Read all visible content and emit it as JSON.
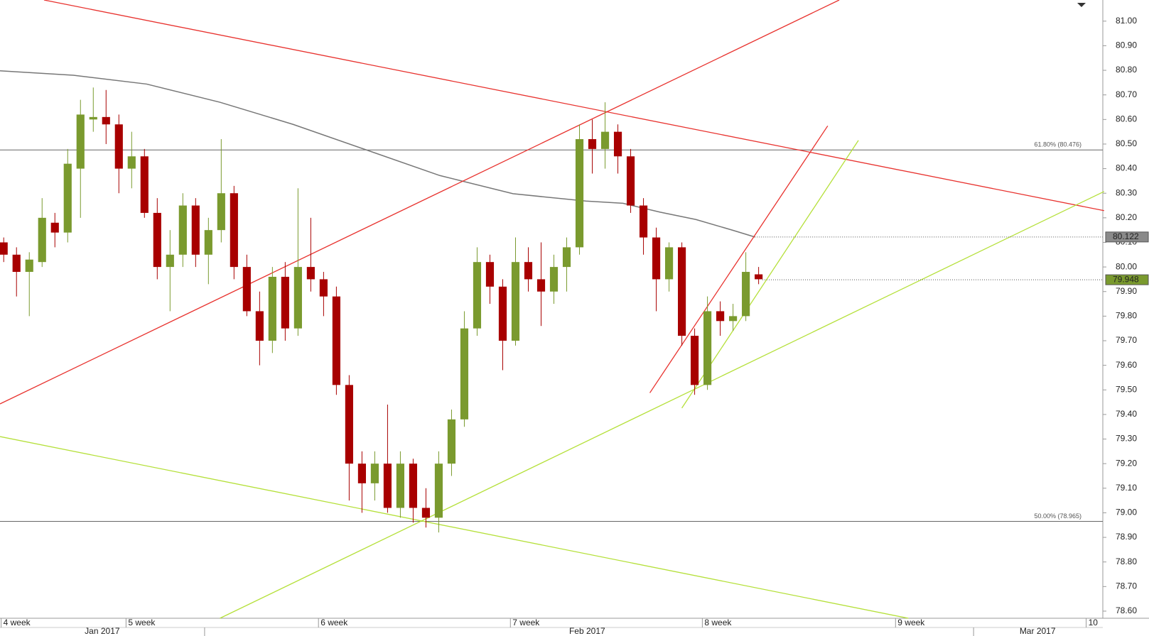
{
  "chart_data": {
    "type": "candlestick",
    "up_color": "#7a9a2e",
    "down_color": "#a80000",
    "xlim": [
      -0.29,
      85.9
    ],
    "ylim": [
      78.571,
      81.086
    ],
    "yticks": [
      {
        "value": 78.6,
        "label": "78.60"
      },
      {
        "value": 78.7,
        "label": "78.70"
      },
      {
        "value": 78.8,
        "label": "78.80"
      },
      {
        "value": 78.9,
        "label": "78.90"
      },
      {
        "value": 79,
        "label": "79.00"
      },
      {
        "value": 79.1,
        "label": "79.10"
      },
      {
        "value": 79.2,
        "label": "79.20"
      },
      {
        "value": 79.3,
        "label": "79.30"
      },
      {
        "value": 79.4,
        "label": "79.40"
      },
      {
        "value": 79.5,
        "label": "79.50"
      },
      {
        "value": 79.6,
        "label": "79.60"
      },
      {
        "value": 79.7,
        "label": "79.70"
      },
      {
        "value": 79.8,
        "label": "79.80"
      },
      {
        "value": 79.9,
        "label": "79.90"
      },
      {
        "value": 80,
        "label": "80.00"
      },
      {
        "value": 80.1,
        "label": "80.10"
      },
      {
        "value": 80.2,
        "label": "80.20"
      },
      {
        "value": 80.3,
        "label": "80.30"
      },
      {
        "value": 80.4,
        "label": "80.40"
      },
      {
        "value": 80.5,
        "label": "80.50"
      },
      {
        "value": 80.6,
        "label": "80.60"
      },
      {
        "value": 80.7,
        "label": "80.70"
      },
      {
        "value": 80.8,
        "label": "80.80"
      },
      {
        "value": 80.9,
        "label": "80.90"
      },
      {
        "value": 81,
        "label": "81.00"
      }
    ],
    "xticks": [
      {
        "value": -0.2,
        "label": "4 week"
      },
      {
        "value": 9.56,
        "label": "5 week"
      },
      {
        "value": 24.6,
        "label": "6 week"
      },
      {
        "value": 39.6,
        "label": "7 week"
      },
      {
        "value": 54.6,
        "label": "8 week"
      },
      {
        "value": 69.7,
        "label": "9 week"
      },
      {
        "value": 84.6,
        "label": "10"
      }
    ],
    "month_ticks": [
      {
        "value": 7.7,
        "label": "Jan 2017"
      },
      {
        "value": 45.6,
        "label": "Feb 2017"
      },
      {
        "value": 80.8,
        "label": "Mar 2017"
      }
    ],
    "month_bounds": [
      15.7,
      75.8
    ],
    "candles": [
      [
        80.1,
        80.12,
        80.02,
        80.05
      ],
      [
        80.05,
        80.08,
        79.88,
        79.98
      ],
      [
        79.98,
        80.06,
        79.8,
        80.03
      ],
      [
        80.02,
        80.28,
        80.0,
        80.2
      ],
      [
        80.18,
        80.22,
        80.08,
        80.14
      ],
      [
        80.14,
        80.48,
        80.1,
        80.42
      ],
      [
        80.4,
        80.68,
        80.2,
        80.62
      ],
      [
        80.6,
        80.73,
        80.55,
        80.61
      ],
      [
        80.61,
        80.72,
        80.5,
        80.58
      ],
      [
        80.58,
        80.62,
        80.3,
        80.4
      ],
      [
        80.4,
        80.55,
        80.32,
        80.45
      ],
      [
        80.45,
        80.48,
        80.2,
        80.22
      ],
      [
        80.22,
        80.28,
        79.95,
        80.0
      ],
      [
        80.0,
        80.15,
        79.82,
        80.05
      ],
      [
        80.05,
        80.3,
        80.0,
        80.25
      ],
      [
        80.25,
        80.28,
        80.0,
        80.05
      ],
      [
        80.05,
        80.2,
        79.93,
        80.15
      ],
      [
        80.15,
        80.52,
        80.1,
        80.3
      ],
      [
        80.3,
        80.33,
        79.95,
        80.0
      ],
      [
        80.0,
        80.05,
        79.8,
        79.82
      ],
      [
        79.82,
        79.9,
        79.6,
        79.7
      ],
      [
        79.7,
        80.0,
        79.65,
        79.96
      ],
      [
        79.96,
        80.02,
        79.7,
        79.75
      ],
      [
        79.75,
        80.32,
        79.72,
        80.0
      ],
      [
        80.0,
        80.2,
        79.9,
        79.95
      ],
      [
        79.95,
        79.98,
        79.8,
        79.88
      ],
      [
        79.88,
        79.92,
        79.48,
        79.52
      ],
      [
        79.52,
        79.56,
        79.05,
        79.2
      ],
      [
        79.2,
        79.25,
        79.0,
        79.12
      ],
      [
        79.12,
        79.25,
        79.05,
        79.2
      ],
      [
        79.2,
        79.44,
        79.0,
        79.02
      ],
      [
        79.02,
        79.25,
        78.98,
        79.2
      ],
      [
        79.2,
        79.22,
        78.96,
        79.02
      ],
      [
        79.02,
        79.1,
        78.94,
        78.98
      ],
      [
        78.98,
        79.25,
        78.92,
        79.2
      ],
      [
        79.2,
        79.42,
        79.15,
        79.38
      ],
      [
        79.38,
        79.82,
        79.35,
        79.75
      ],
      [
        79.75,
        80.08,
        79.72,
        80.02
      ],
      [
        80.02,
        80.05,
        79.85,
        79.92
      ],
      [
        79.92,
        79.95,
        79.58,
        79.7
      ],
      [
        79.7,
        80.12,
        79.68,
        80.02
      ],
      [
        80.02,
        80.08,
        79.9,
        79.95
      ],
      [
        79.95,
        80.1,
        79.76,
        79.9
      ],
      [
        79.9,
        80.05,
        79.85,
        80.0
      ],
      [
        80.0,
        80.12,
        79.9,
        80.08
      ],
      [
        80.08,
        80.58,
        80.05,
        80.52
      ],
      [
        80.52,
        80.6,
        80.38,
        80.48
      ],
      [
        80.48,
        80.67,
        80.4,
        80.55
      ],
      [
        80.55,
        80.58,
        80.38,
        80.45
      ],
      [
        80.45,
        80.48,
        80.22,
        80.25
      ],
      [
        80.25,
        80.28,
        80.05,
        80.12
      ],
      [
        80.12,
        80.16,
        79.82,
        79.95
      ],
      [
        79.95,
        80.1,
        79.9,
        80.08
      ],
      [
        80.08,
        80.1,
        79.68,
        79.72
      ],
      [
        79.72,
        79.75,
        79.48,
        79.52
      ],
      [
        79.52,
        79.88,
        79.5,
        79.82
      ],
      [
        79.82,
        79.86,
        79.72,
        79.78
      ],
      [
        79.78,
        79.85,
        79.74,
        79.8
      ],
      [
        79.8,
        80.06,
        79.78,
        79.98
      ],
      [
        79.97,
        80.0,
        79.93,
        79.95
      ]
    ],
    "moving_average": {
      "color": "#777777",
      "x": [
        -0.29,
        5.44,
        11.17,
        16.9,
        22.62,
        28.35,
        34.08,
        39.8,
        45.5,
        48.4,
        51.3,
        54.1,
        57,
        58.7
      ],
      "values": [
        80.798,
        80.78,
        80.744,
        80.67,
        80.58,
        80.476,
        80.372,
        80.298,
        80.268,
        80.259,
        80.223,
        80.193,
        80.149,
        80.122
      ]
    },
    "lines": [
      {
        "color": "#e8322e",
        "points": [
          [
            -0.29,
            79.443
          ],
          [
            65.3,
            81.086
          ]
        ]
      },
      {
        "color": "#e8322e",
        "points": [
          [
            3.15,
            81.086
          ],
          [
            86.0,
            80.229
          ]
        ]
      },
      {
        "color": "#e8322e",
        "points": [
          [
            50.5,
            79.488
          ],
          [
            64.4,
            80.574
          ]
        ]
      },
      {
        "color": "#b5e03a",
        "points": [
          [
            -0.29,
            79.31
          ],
          [
            70.7,
            78.571
          ]
        ]
      },
      {
        "color": "#b5e03a",
        "points": [
          [
            16.9,
            78.571
          ],
          [
            86.0,
            80.307
          ]
        ]
      },
      {
        "color": "#b5e03a",
        "points": [
          [
            53.0,
            79.426
          ],
          [
            66.8,
            80.515
          ]
        ]
      }
    ],
    "fib_levels": [
      {
        "value": 80.476,
        "label": "61.80% (80.476)"
      },
      {
        "value": 78.965,
        "label": "50.00% (78.965)"
      }
    ],
    "price_markers": [
      {
        "value": 80.122,
        "color": "#8a8a8a",
        "from": 58.7
      },
      {
        "value": 79.948,
        "color": "#7a9a2e",
        "from": 59.3
      }
    ]
  }
}
